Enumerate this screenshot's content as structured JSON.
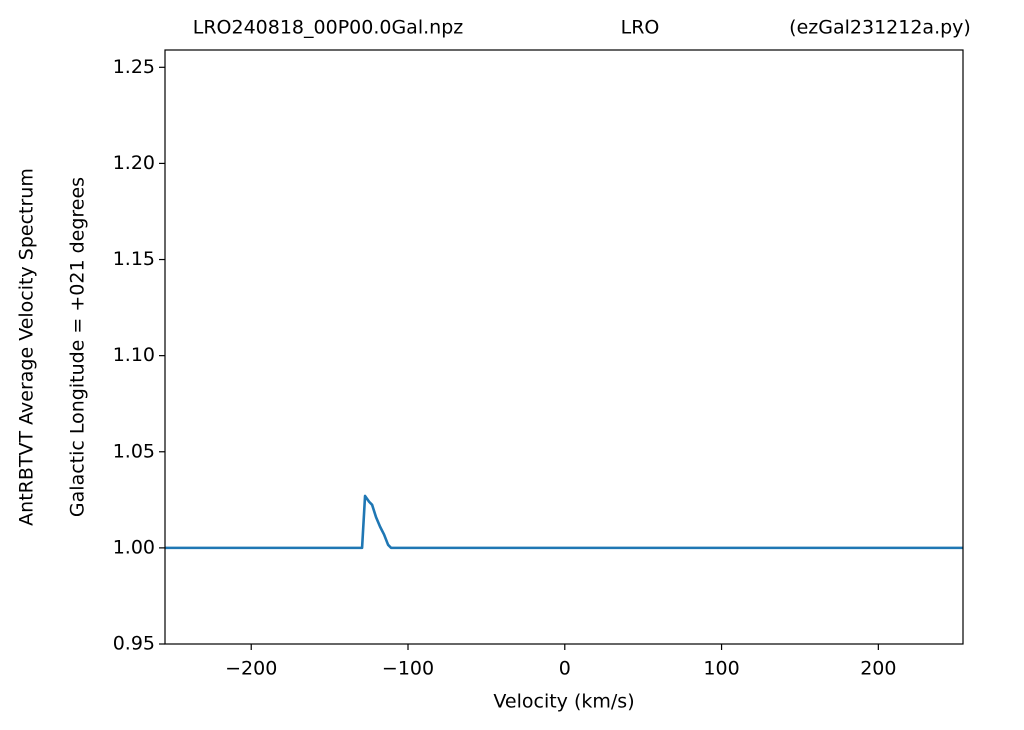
{
  "chart_data": {
    "type": "line",
    "title_parts": [
      "LRO240818_00P00.0Gal.npz",
      "LRO",
      "(ezGal231212a.py)"
    ],
    "ylabel_lines": [
      "AntRBTVT Average Velocity Spectrum",
      "Galactic Longitude = +021 degrees"
    ],
    "xlabel": "Velocity (km/s)",
    "x": [
      -255,
      -129.3,
      -127.4,
      -124.8,
      -122.9,
      -120.4,
      -117.8,
      -115.3,
      -112.7,
      -110.8,
      254
    ],
    "series": [
      {
        "color": "#1f77b4",
        "values": [
          1.0,
          1.0,
          1.027,
          1.024,
          1.0224,
          1.016,
          1.011,
          1.007,
          1.0016,
          1.0,
          1.0
        ]
      }
    ],
    "xlim": [
      -255,
      254
    ],
    "ylim": [
      0.95,
      1.259
    ],
    "xticks": [
      {
        "value": -200,
        "label": "−200"
      },
      {
        "value": -100,
        "label": "−100"
      },
      0,
      100,
      200
    ],
    "yticks": [
      {
        "value": 0.95,
        "label": "0.95"
      },
      {
        "value": 1.0,
        "label": "1.00"
      },
      {
        "value": 1.05,
        "label": "1.05"
      },
      {
        "value": 1.1,
        "label": "1.10"
      },
      {
        "value": 1.15,
        "label": "1.15"
      },
      {
        "value": 1.2,
        "label": "1.20"
      },
      {
        "value": 1.25,
        "label": "1.25"
      }
    ],
    "grid": false
  }
}
